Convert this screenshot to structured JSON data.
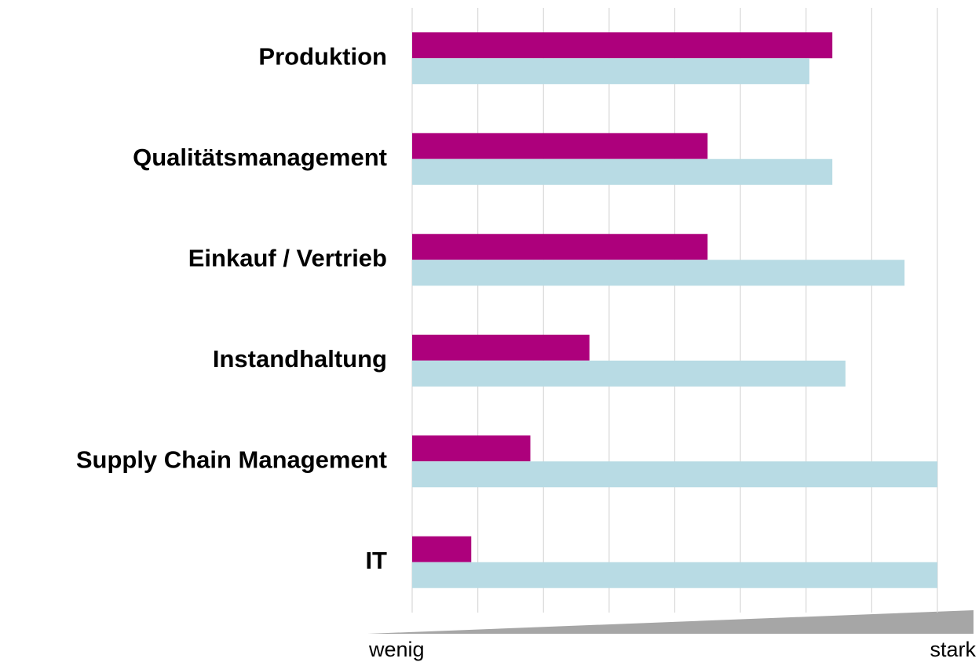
{
  "chart_data": {
    "type": "bar",
    "orientation": "horizontal",
    "categories": [
      "Produktion",
      "Qualitätsmanagement",
      "Einkauf / Vertrieb",
      "Instandhaltung",
      "Supply Chain Management",
      "IT"
    ],
    "series": [
      {
        "color": "#ad007c",
        "values": [
          6.4,
          4.5,
          4.5,
          2.7,
          1.8,
          0.9
        ]
      },
      {
        "color": "#b8dbe4",
        "values": [
          6.05,
          6.4,
          7.5,
          6.6,
          8.0,
          8.0
        ]
      }
    ],
    "xlim": [
      0,
      8
    ],
    "xticks": [
      0,
      1,
      2,
      3,
      4,
      5,
      6,
      7,
      8
    ],
    "grid": true,
    "annotations": [
      "wenig",
      "stark"
    ]
  }
}
